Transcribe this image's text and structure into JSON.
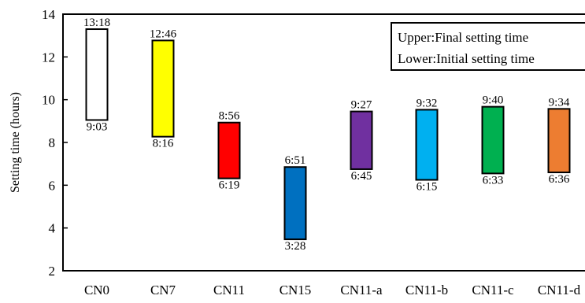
{
  "chart_data": {
    "type": "floating-bar",
    "ylabel": "Setting time (hours)",
    "ylim": [
      2,
      14
    ],
    "yticks": [
      2,
      4,
      6,
      8,
      10,
      12,
      14
    ],
    "categories": [
      "CN0",
      "CN7",
      "CN11",
      "CN15",
      "CN11-a",
      "CN11-b",
      "CN11-c",
      "CN11-d"
    ],
    "series": [
      {
        "name": "Lower:Initial setting time",
        "values": [
          9.05,
          8.27,
          6.32,
          3.47,
          6.75,
          6.25,
          6.55,
          6.6
        ],
        "labels": [
          "9:03",
          "8:16",
          "6:19",
          "3:28",
          "6:45",
          "6:15",
          "6:33",
          "6:36"
        ]
      },
      {
        "name": "Upper:Final setting time",
        "values": [
          13.3,
          12.77,
          8.93,
          6.85,
          9.45,
          9.53,
          9.67,
          9.57
        ],
        "labels": [
          "13:18",
          "12:46",
          "8:56",
          "6:51",
          "9:27",
          "9:32",
          "9:40",
          "9:34"
        ]
      }
    ],
    "colors": [
      "#ffffff",
      "#ffff00",
      "#ff0000",
      "#0070c0",
      "#7030a0",
      "#00b0f0",
      "#00b050",
      "#ed7d31"
    ],
    "legend": {
      "position": "top-right",
      "lines": [
        "Upper:Final setting time",
        "Lower:Initial setting time"
      ]
    },
    "grid": false
  }
}
